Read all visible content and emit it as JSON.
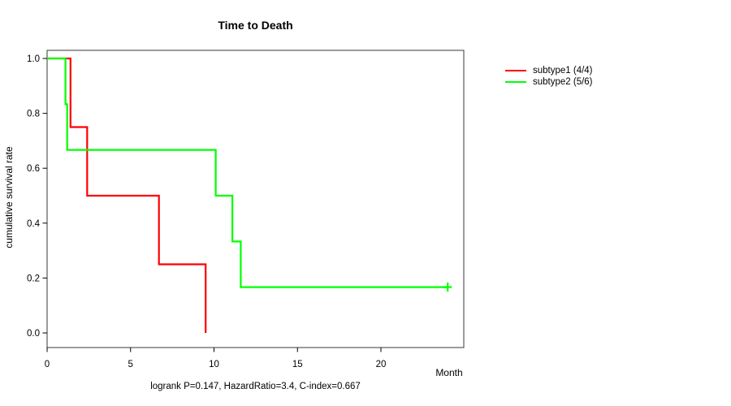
{
  "chart_data": {
    "type": "line",
    "variant": "kaplan-meier-step",
    "title": "Time to Death",
    "xlabel": "Month",
    "ylabel": "cumulative survival rate",
    "annotation": "logrank P=0.147, HazardRatio=3.4, C-index=0.667",
    "xlim": [
      0,
      25
    ],
    "ylim": [
      0,
      1
    ],
    "x_ticks": [
      0,
      5,
      10,
      15,
      20
    ],
    "y_ticks": [
      "0.0",
      "0.2",
      "0.4",
      "0.6",
      "0.8",
      "1.0"
    ],
    "grid": false,
    "legend_position": "right-outside",
    "series": [
      {
        "name": "subtype1 (4/4)",
        "color": "#ff0000",
        "points": [
          [
            0,
            1.0
          ],
          [
            1.4,
            1.0
          ],
          [
            1.4,
            0.75
          ],
          [
            2.4,
            0.75
          ],
          [
            2.4,
            0.5
          ],
          [
            6.7,
            0.5
          ],
          [
            6.7,
            0.25
          ],
          [
            9.5,
            0.25
          ],
          [
            9.5,
            0.0
          ]
        ],
        "censor_marks": []
      },
      {
        "name": "subtype2 (5/6)",
        "color": "#00ff00",
        "points": [
          [
            0,
            1.0
          ],
          [
            1.1,
            1.0
          ],
          [
            1.1,
            0.833
          ],
          [
            1.2,
            0.833
          ],
          [
            1.2,
            0.667
          ],
          [
            10.1,
            0.667
          ],
          [
            10.1,
            0.5
          ],
          [
            11.1,
            0.5
          ],
          [
            11.1,
            0.333
          ],
          [
            11.6,
            0.333
          ],
          [
            11.6,
            0.167
          ],
          [
            24,
            0.167
          ]
        ],
        "censor_marks": [
          [
            24,
            0.167
          ]
        ]
      }
    ]
  }
}
